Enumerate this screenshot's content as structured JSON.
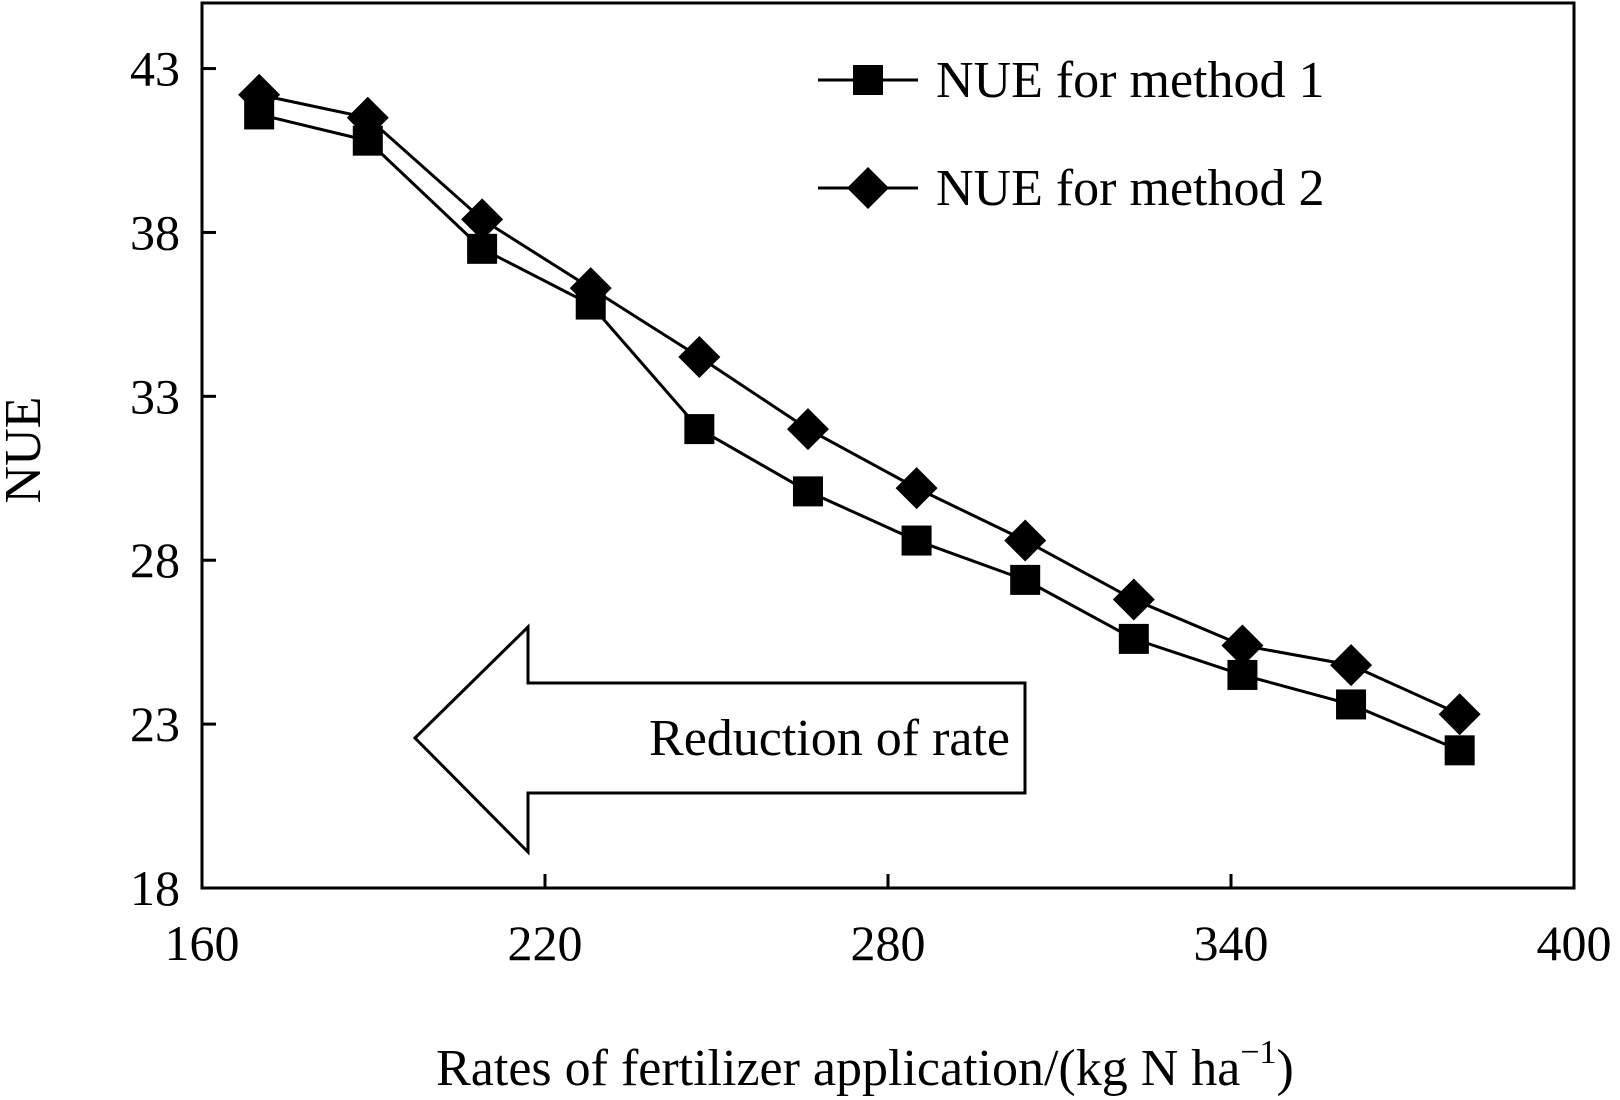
{
  "chart_data": {
    "type": "line",
    "xlabel": "Rates of fertilizer application/(kg N ha",
    "xlabel_superscript": "−1",
    "xlabel_suffix": ")",
    "ylabel": "NUE",
    "xlim": [
      160,
      400
    ],
    "ylim": [
      18,
      45
    ],
    "xticks": [
      160,
      220,
      280,
      340,
      400
    ],
    "yticks": [
      18,
      23,
      28,
      33,
      38,
      43
    ],
    "x": [
      170,
      189,
      209,
      228,
      247,
      266,
      285,
      304,
      323,
      342,
      361,
      380
    ],
    "series": [
      {
        "name": "NUE for method 1",
        "marker": "square",
        "values": [
          41.6,
          40.8,
          37.5,
          35.8,
          32.0,
          30.1,
          28.6,
          27.4,
          25.6,
          24.5,
          23.6,
          22.2
        ]
      },
      {
        "name": "NUE for method 2",
        "marker": "diamond",
        "values": [
          42.2,
          41.5,
          38.4,
          36.3,
          34.2,
          32.0,
          30.2,
          28.6,
          26.8,
          25.4,
          24.8,
          23.3
        ]
      }
    ],
    "legend_position": "top-right",
    "grid": false,
    "annotations": [
      {
        "type": "arrow-left",
        "text": "Reduction of rate"
      }
    ]
  }
}
